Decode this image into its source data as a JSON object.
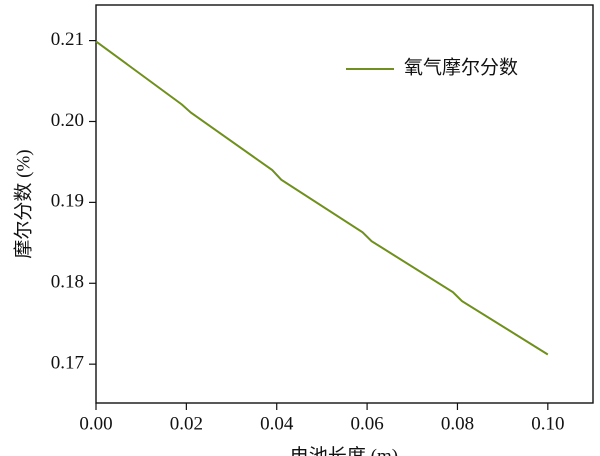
{
  "chart_data": {
    "type": "line",
    "x_label": "电池长度 (m)",
    "y_label": "摩尔分数 (%)",
    "x": [
      0,
      0.019,
      0.021,
      0.039,
      0.041,
      0.059,
      0.061,
      0.079,
      0.081,
      0.1
    ],
    "series": [
      {
        "name": "氧气摩尔分数",
        "color": "#6f8f1e",
        "values": [
          0.2099,
          0.2021,
          0.2011,
          0.194,
          0.1928,
          0.1863,
          0.1852,
          0.1789,
          0.1778,
          0.1712
        ]
      }
    ],
    "xlim": [
      0,
      0.11
    ],
    "ylim": [
      0.1652,
      0.2144
    ],
    "xticks": [
      {
        "value": 0,
        "label": "0.00"
      },
      {
        "value": 0.02,
        "label": "0.02"
      },
      {
        "value": 0.04,
        "label": "0.04"
      },
      {
        "value": 0.06,
        "label": "0.06"
      },
      {
        "value": 0.08,
        "label": "0.08"
      },
      {
        "value": 0.1,
        "label": "0.10"
      }
    ],
    "yticks": [
      0.17,
      0.18,
      0.19,
      {
        "value": 0.2,
        "label": "0.20"
      },
      0.21
    ],
    "legend": "upper right"
  }
}
